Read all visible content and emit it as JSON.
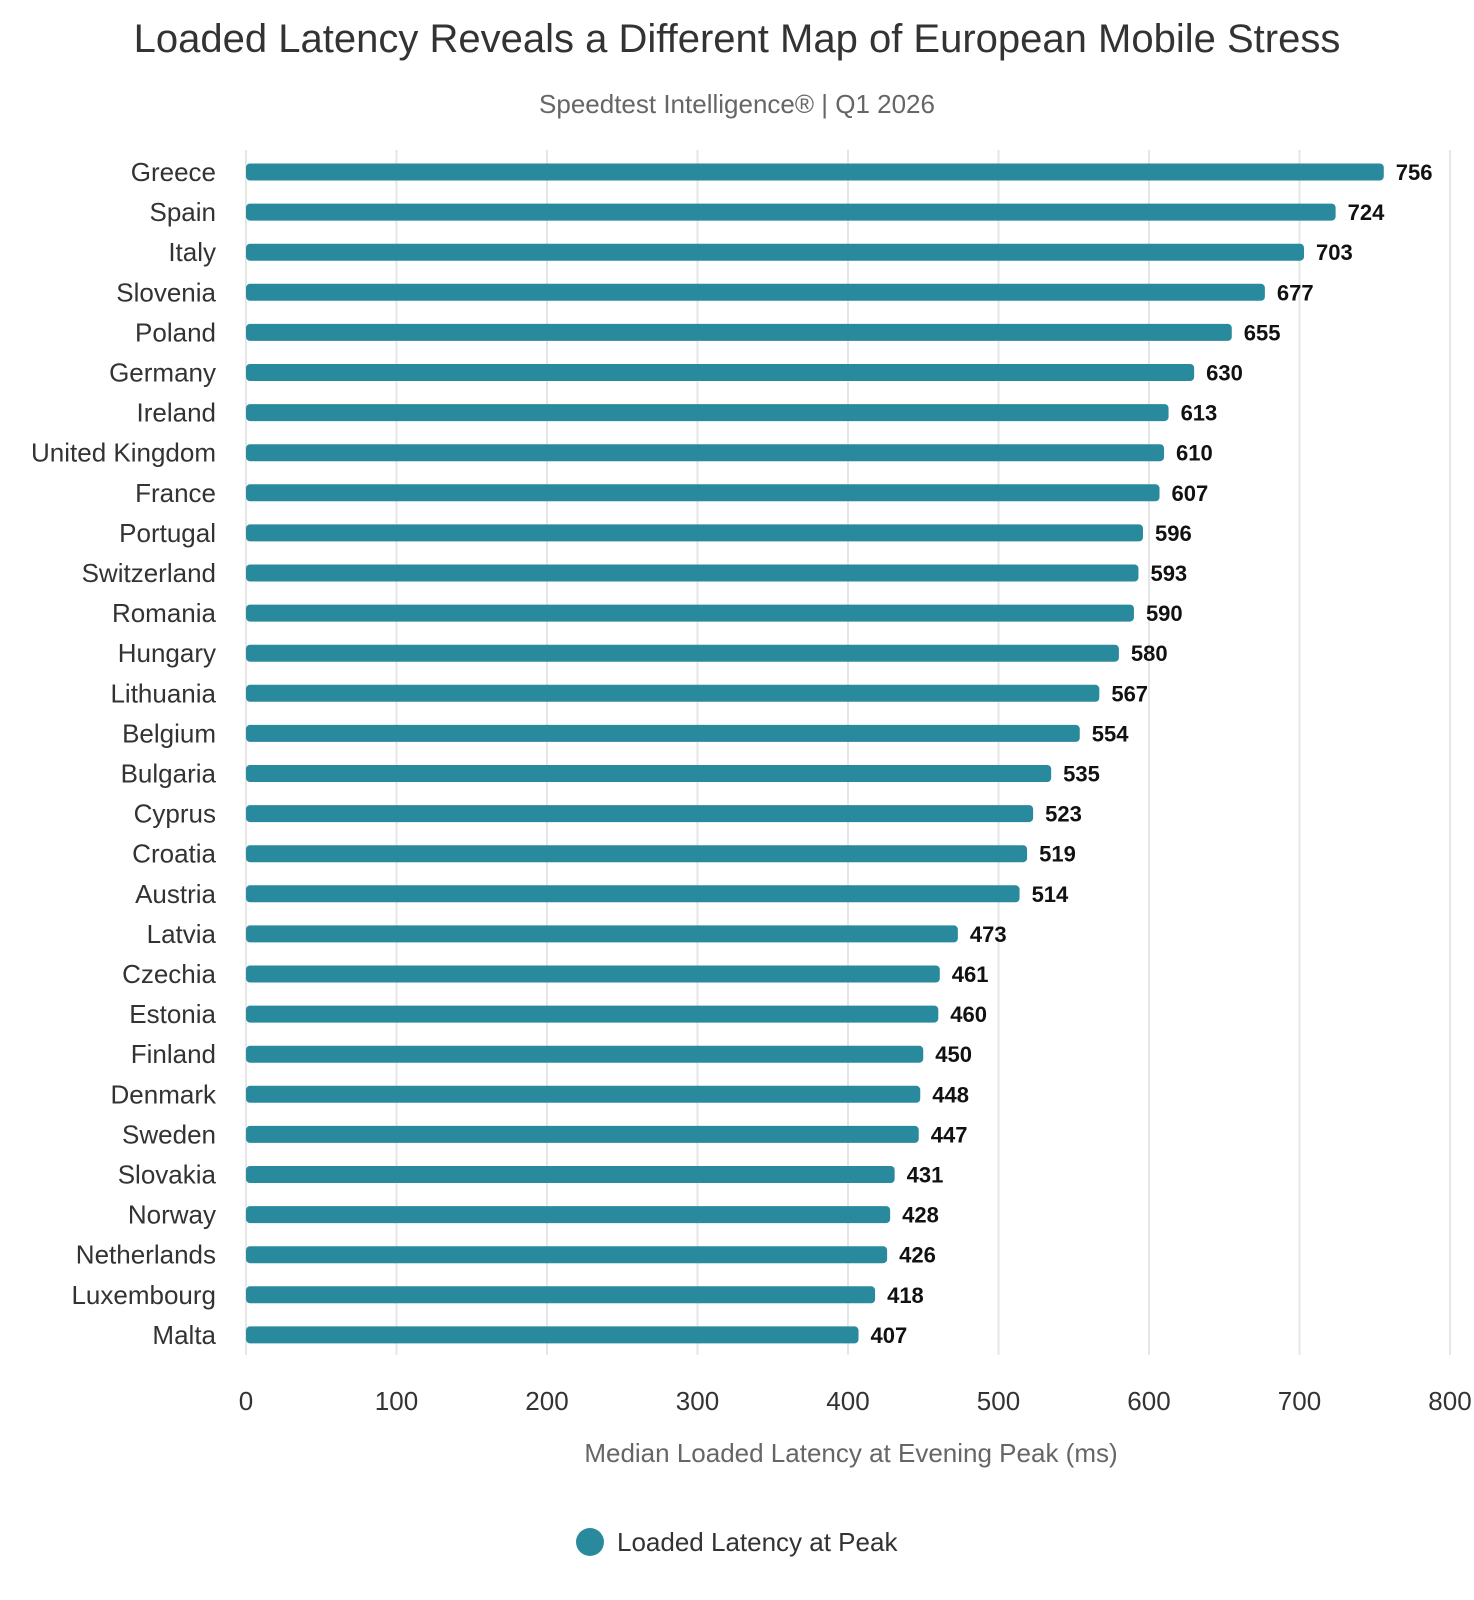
{
  "chart_data": {
    "type": "bar",
    "orientation": "horizontal",
    "title": "Loaded Latency Reveals a Different Map of European Mobile Stress",
    "subtitle": "Speedtest Intelligence® | Q1 2026",
    "xlabel": "Median Loaded Latency at Evening Peak (ms)",
    "ylabel": "",
    "xlim": [
      0,
      800
    ],
    "xticks": [
      0,
      100,
      200,
      300,
      400,
      500,
      600,
      700,
      800
    ],
    "grid": true,
    "legend_position": "bottom",
    "series": [
      {
        "name": "Loaded Latency at Peak",
        "color": "#2a8a9d",
        "values": [
          756,
          724,
          703,
          677,
          655,
          630,
          613,
          610,
          607,
          596,
          593,
          590,
          580,
          567,
          554,
          535,
          523,
          519,
          514,
          473,
          461,
          460,
          450,
          448,
          447,
          431,
          428,
          426,
          418,
          407
        ]
      }
    ],
    "categories": [
      "Greece",
      "Spain",
      "Italy",
      "Slovenia",
      "Poland",
      "Germany",
      "Ireland",
      "United Kingdom",
      "France",
      "Portugal",
      "Switzerland",
      "Romania",
      "Hungary",
      "Lithuania",
      "Belgium",
      "Bulgaria",
      "Cyprus",
      "Croatia",
      "Austria",
      "Latvia",
      "Czechia",
      "Estonia",
      "Finland",
      "Denmark",
      "Sweden",
      "Slovakia",
      "Norway",
      "Netherlands",
      "Luxembourg",
      "Malta"
    ]
  }
}
